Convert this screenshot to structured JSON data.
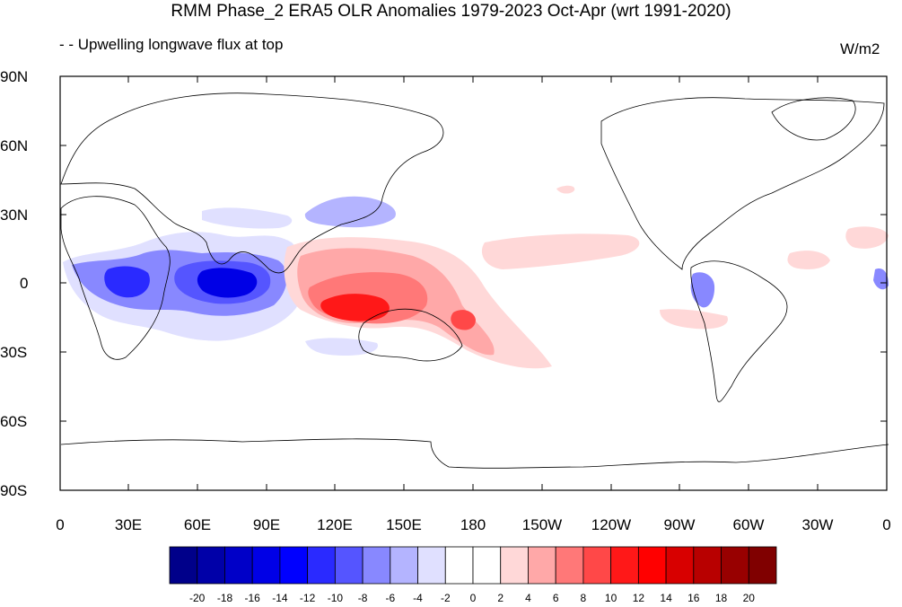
{
  "title": "RMM Phase_2 ERA5 OLR Anomalies 1979-2023 Oct-Apr (wrt 1991-2020)",
  "subtitle": "- - Upwelling longwave flux at top",
  "units": "W/m2",
  "y_ticks": [
    "90N",
    "60N",
    "30N",
    "0",
    "30S",
    "60S",
    "90S"
  ],
  "x_ticks": [
    "0",
    "30E",
    "60E",
    "90E",
    "120E",
    "150E",
    "180",
    "150W",
    "120W",
    "90W",
    "60W",
    "30W",
    "0"
  ],
  "colorbar": {
    "labels": [
      "-20",
      "-18",
      "-16",
      "-14",
      "-12",
      "-10",
      "-8",
      "-6",
      "-4",
      "-2",
      "0",
      "2",
      "4",
      "6",
      "8",
      "10",
      "12",
      "14",
      "16",
      "18",
      "20"
    ],
    "colors": [
      "#00008a",
      "#0000a8",
      "#0000c8",
      "#0000e6",
      "#0000ff",
      "#2a2aff",
      "#5555ff",
      "#8888ff",
      "#b4b4ff",
      "#e0e0ff",
      "#ffffff",
      "#ffffff",
      "#ffd8d8",
      "#ffa8a8",
      "#ff7878",
      "#ff4848",
      "#ff1818",
      "#ff0000",
      "#d80000",
      "#b80000",
      "#980000",
      "#800000"
    ]
  },
  "map": {
    "projection": "cylindrical-equidistant, centered 180",
    "features": [
      "coastlines",
      "colored OLR anomaly contours"
    ]
  }
}
